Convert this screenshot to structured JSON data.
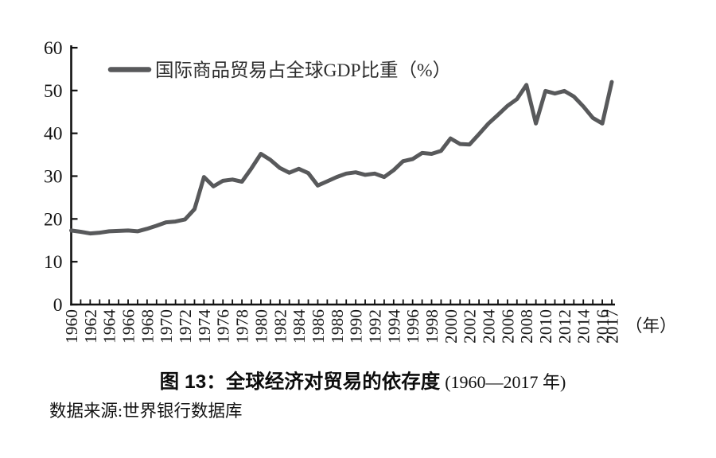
{
  "figure": {
    "caption_bold": "图 13：全球经济对贸易的依存度",
    "caption_range": "(1960—2017 年)",
    "source": "数据来源:世界银行数据库"
  },
  "chart_data": {
    "type": "line",
    "title": "图 13：全球经济对贸易的依存度(1960—2017 年)",
    "legend": "国际商品贸易占全球GDP比重（%）",
    "legend_position": "top-left-inside",
    "xlabel": "（年）",
    "ylabel": "",
    "ylim": [
      0,
      60
    ],
    "yticks": [
      0,
      10,
      20,
      30,
      40,
      50,
      60
    ],
    "xtick_labels": [
      "1960",
      "1962",
      "1964",
      "1966",
      "1968",
      "1970",
      "1972",
      "1974",
      "1976",
      "1978",
      "1980",
      "1982",
      "1984",
      "1986",
      "1988",
      "1990",
      "1992",
      "1994",
      "1996",
      "1998",
      "2000",
      "2002",
      "2004",
      "2006",
      "2008",
      "2010",
      "2012",
      "2014",
      "2016",
      "2017"
    ],
    "grid": false,
    "line_color": "#58595b",
    "axis_color": "#111111",
    "series": [
      {
        "name": "国际商品贸易占全球GDP比重（%）",
        "x": [
          1960,
          1961,
          1962,
          1963,
          1964,
          1965,
          1966,
          1967,
          1968,
          1969,
          1970,
          1971,
          1972,
          1973,
          1974,
          1975,
          1976,
          1977,
          1978,
          1979,
          1980,
          1981,
          1982,
          1983,
          1984,
          1985,
          1986,
          1987,
          1988,
          1989,
          1990,
          1991,
          1992,
          1993,
          1994,
          1995,
          1996,
          1997,
          1998,
          1999,
          2000,
          2001,
          2002,
          2003,
          2004,
          2005,
          2006,
          2007,
          2008,
          2009,
          2010,
          2011,
          2012,
          2013,
          2014,
          2015,
          2016,
          2017
        ],
        "values": [
          17.3,
          17.0,
          16.6,
          16.8,
          17.1,
          17.2,
          17.3,
          17.1,
          17.7,
          18.4,
          19.2,
          19.4,
          19.9,
          22.3,
          29.8,
          27.6,
          28.9,
          29.2,
          28.7,
          31.8,
          35.2,
          33.8,
          31.9,
          30.8,
          31.7,
          30.7,
          27.8,
          28.8,
          29.8,
          30.6,
          30.9,
          30.3,
          30.6,
          29.8,
          31.4,
          33.5,
          34.0,
          35.4,
          35.2,
          35.9,
          38.8,
          37.5,
          37.4,
          39.8,
          42.3,
          44.3,
          46.4,
          48.0,
          51.3,
          42.3,
          49.9,
          49.3,
          49.9,
          48.6,
          46.3,
          43.6,
          42.3,
          52.0
        ]
      }
    ]
  }
}
